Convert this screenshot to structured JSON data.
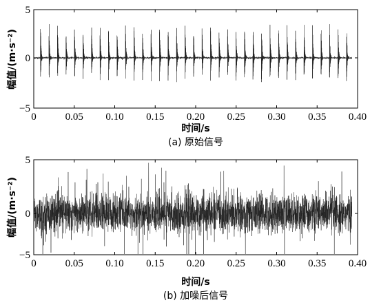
{
  "chart_data": [
    {
      "type": "line",
      "caption": "(a) 原始信号",
      "xlabel": "时间/s",
      "ylabel": "幅值/(m·s⁻²)",
      "xlim": [
        0,
        0.4
      ],
      "ylim": [
        -5,
        5
      ],
      "xticks": [
        0,
        0.05,
        0.1,
        0.15,
        0.2,
        0.25,
        0.3,
        0.35,
        0.4
      ],
      "xtick_labels": [
        "0",
        "0.05",
        "0.10",
        "0.15",
        "0.20",
        "0.25",
        "0.30",
        "0.35",
        "0.40"
      ],
      "yticks": [
        -5,
        0,
        5
      ],
      "ytick_labels": [
        "−5",
        "0",
        "5"
      ],
      "grid": false,
      "impulse_period": 0.0105,
      "impulse_first": 0.0085,
      "impulse_last": 0.393,
      "impulse_peak": 3.5,
      "impulse_trough": -2.4,
      "noise_amplitude": 0.1
    },
    {
      "type": "line",
      "caption": "(b) 加噪后信号",
      "xlabel": "时间/s",
      "ylabel": "幅值/(m·s⁻²)",
      "xlim": [
        0,
        0.4
      ],
      "ylim": [
        -5,
        5
      ],
      "xticks": [
        0,
        0.05,
        0.1,
        0.15,
        0.2,
        0.25,
        0.3,
        0.35,
        0.4
      ],
      "xtick_labels": [
        "0",
        "0.05",
        "0.10",
        "0.15",
        "0.20",
        "0.25",
        "0.30",
        "0.35",
        "0.40"
      ],
      "yticks": [
        -5,
        0,
        5
      ],
      "ytick_labels": [
        "−5",
        "0",
        "5"
      ],
      "grid": false,
      "noise_amplitude": 1.8,
      "max_value": 5.8,
      "min_value": -4.6
    }
  ]
}
